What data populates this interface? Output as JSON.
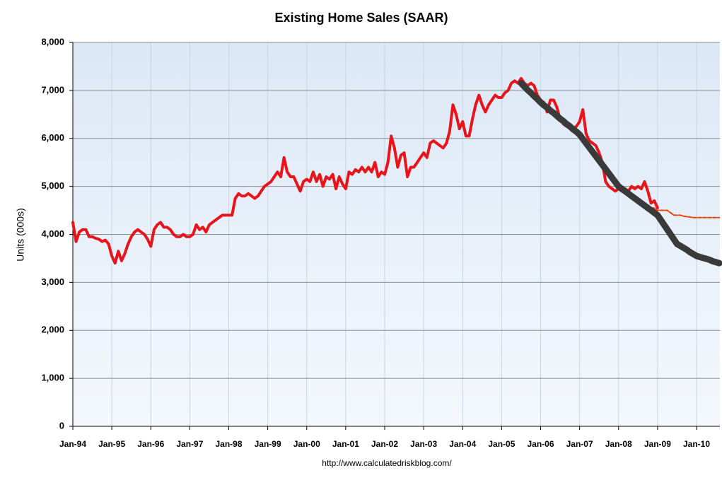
{
  "chart_data": {
    "type": "line",
    "title": "Existing Home Sales (SAAR)",
    "ylabel": "Units (000s)",
    "source": "http://www.calculatedriskblog.com/",
    "categories": [
      "Jan-94",
      null,
      null,
      null,
      null,
      null,
      null,
      null,
      null,
      null,
      null,
      null,
      "Jan-95",
      null,
      null,
      null,
      null,
      null,
      null,
      null,
      null,
      null,
      null,
      null,
      "Jan-96",
      null,
      null,
      null,
      null,
      null,
      null,
      null,
      null,
      null,
      null,
      null,
      "Jan-97",
      null,
      null,
      null,
      null,
      null,
      null,
      null,
      null,
      null,
      null,
      null,
      "Jan-98",
      null,
      null,
      null,
      null,
      null,
      null,
      null,
      null,
      null,
      null,
      null,
      "Jan-99",
      null,
      null,
      null,
      null,
      null,
      null,
      null,
      null,
      null,
      null,
      null,
      "Jan-00",
      null,
      null,
      null,
      null,
      null,
      null,
      null,
      null,
      null,
      null,
      null,
      "Jan-01",
      null,
      null,
      null,
      null,
      null,
      null,
      null,
      null,
      null,
      null,
      null,
      "Jan-02",
      null,
      null,
      null,
      null,
      null,
      null,
      null,
      null,
      null,
      null,
      null,
      "Jan-03",
      null,
      null,
      null,
      null,
      null,
      null,
      null,
      null,
      null,
      null,
      null,
      "Jan-04",
      null,
      null,
      null,
      null,
      null,
      null,
      null,
      null,
      null,
      null,
      null,
      "Jan-05",
      null,
      null,
      null,
      null,
      null,
      null,
      null,
      null,
      null,
      null,
      null,
      "Jan-06",
      null,
      null,
      null,
      null,
      null,
      null,
      null,
      null,
      null,
      null,
      null,
      "Jan-07",
      null,
      null,
      null,
      null,
      null,
      null,
      null,
      null,
      null,
      null,
      null,
      "Jan-08",
      null,
      null,
      null,
      null,
      null,
      null,
      null,
      null,
      null,
      null,
      null,
      "Jan-09",
      null,
      null,
      null,
      null,
      null,
      null,
      null,
      null,
      null,
      null,
      null,
      "Jan-10",
      null,
      null,
      null,
      null,
      null,
      null,
      null
    ],
    "series": [
      {
        "color": "#e8141a",
        "width": 4,
        "values": [
          4250,
          3850,
          4050,
          4100,
          4100,
          3950,
          3950,
          3920,
          3900,
          3850,
          3880,
          3800,
          3550,
          3400,
          3650,
          3450,
          3600,
          3800,
          3950,
          4050,
          4100,
          4050,
          4000,
          3900,
          3750,
          4100,
          4200,
          4250,
          4150,
          4150,
          4100,
          4000,
          3950,
          3950,
          4000,
          3950,
          3950,
          4000,
          4200,
          4100,
          4150,
          4050,
          4200,
          4250,
          4300,
          4350,
          4400,
          4400,
          4400,
          4400,
          4750,
          4850,
          4800,
          4800,
          4850,
          4800,
          4750,
          4800,
          4900,
          5000,
          5050,
          5100,
          5200,
          5300,
          5200,
          5600,
          5300,
          5200,
          5200,
          5050,
          4900,
          5100,
          5150,
          5100,
          5300,
          5100,
          5250,
          5000,
          5200,
          5150,
          5250,
          4950,
          5200,
          5050,
          4950,
          5300,
          5250,
          5350,
          5300,
          5400,
          5300,
          5400,
          5300,
          5500,
          5200,
          5300,
          5250,
          5500,
          6050,
          5800,
          5400,
          5650,
          5700,
          5200,
          5400,
          5400,
          5500,
          5600,
          5700,
          5600,
          5900,
          5950,
          5900,
          5850,
          5800,
          5900,
          6150,
          6700,
          6500,
          6200,
          6350,
          6050,
          6050,
          6400,
          6700,
          6900,
          6700,
          6550,
          6700,
          6800,
          6900,
          6850,
          6850,
          6950,
          7000,
          7150,
          7200,
          7150,
          7250,
          7150,
          7100,
          7150,
          7100,
          6900,
          6800,
          6750,
          6550,
          6800,
          6800,
          6650,
          6400,
          6300,
          6250,
          6300,
          6200,
          6250,
          6350,
          6600,
          6100,
          5950,
          5900,
          5850,
          5700,
          5500,
          5100,
          5000,
          4950,
          4900,
          4950,
          4900,
          4950,
          4900,
          5000,
          4950,
          5000,
          4950,
          5100,
          4900,
          4650,
          4700,
          4550,
          null,
          null,
          null,
          null,
          null,
          null,
          null,
          null,
          null,
          null,
          null,
          null,
          null,
          null,
          null,
          null,
          null,
          null,
          null
        ]
      },
      {
        "color": "#e8400a",
        "width": 2,
        "dash": true,
        "values": [
          null,
          null,
          null,
          null,
          null,
          null,
          null,
          null,
          null,
          null,
          null,
          null,
          null,
          null,
          null,
          null,
          null,
          null,
          null,
          null,
          null,
          null,
          null,
          null,
          null,
          null,
          null,
          null,
          null,
          null,
          null,
          null,
          null,
          null,
          null,
          null,
          null,
          null,
          null,
          null,
          null,
          null,
          null,
          null,
          null,
          null,
          null,
          null,
          null,
          null,
          null,
          null,
          null,
          null,
          null,
          null,
          null,
          null,
          null,
          null,
          null,
          null,
          null,
          null,
          null,
          null,
          null,
          null,
          null,
          null,
          null,
          null,
          null,
          null,
          null,
          null,
          null,
          null,
          null,
          null,
          null,
          null,
          null,
          null,
          null,
          null,
          null,
          null,
          null,
          null,
          null,
          null,
          null,
          null,
          null,
          null,
          null,
          null,
          null,
          null,
          null,
          null,
          null,
          null,
          null,
          null,
          null,
          null,
          null,
          null,
          null,
          null,
          null,
          null,
          null,
          null,
          null,
          null,
          null,
          null,
          null,
          null,
          null,
          null,
          null,
          null,
          null,
          null,
          null,
          null,
          null,
          null,
          null,
          null,
          null,
          null,
          null,
          null,
          null,
          null,
          null,
          null,
          null,
          null,
          null,
          null,
          null,
          null,
          null,
          null,
          null,
          null,
          null,
          null,
          null,
          null,
          null,
          null,
          null,
          null,
          null,
          null,
          null,
          null,
          null,
          null,
          null,
          null,
          null,
          null,
          null,
          null,
          null,
          null,
          null,
          null,
          null,
          null,
          4550,
          4550,
          4500,
          4500,
          4500,
          4500,
          4450,
          4400,
          4400,
          4400,
          4380,
          4370,
          4360,
          4350,
          4350,
          4350,
          4350,
          4350,
          4350,
          4350,
          4350,
          4350
        ]
      },
      {
        "color": "#3a3a3a",
        "width": 9,
        "values": [
          null,
          null,
          null,
          null,
          null,
          null,
          null,
          null,
          null,
          null,
          null,
          null,
          null,
          null,
          null,
          null,
          null,
          null,
          null,
          null,
          null,
          null,
          null,
          null,
          null,
          null,
          null,
          null,
          null,
          null,
          null,
          null,
          null,
          null,
          null,
          null,
          null,
          null,
          null,
          null,
          null,
          null,
          null,
          null,
          null,
          null,
          null,
          null,
          null,
          null,
          null,
          null,
          null,
          null,
          null,
          null,
          null,
          null,
          null,
          null,
          null,
          null,
          null,
          null,
          null,
          null,
          null,
          null,
          null,
          null,
          null,
          null,
          null,
          null,
          null,
          null,
          null,
          null,
          null,
          null,
          null,
          null,
          null,
          null,
          null,
          null,
          null,
          null,
          null,
          null,
          null,
          null,
          null,
          null,
          null,
          null,
          null,
          null,
          null,
          null,
          null,
          null,
          null,
          null,
          null,
          null,
          null,
          null,
          null,
          null,
          null,
          null,
          null,
          null,
          null,
          null,
          null,
          null,
          null,
          null,
          null,
          null,
          null,
          null,
          null,
          null,
          null,
          null,
          null,
          null,
          null,
          null,
          null,
          null,
          null,
          null,
          null,
          null,
          7150,
          7080,
          7010,
          6950,
          6880,
          6820,
          6750,
          6690,
          6640,
          6580,
          6530,
          6470,
          6410,
          6360,
          6300,
          6250,
          6190,
          6140,
          6080,
          5990,
          5900,
          5810,
          5720,
          5630,
          5540,
          5450,
          5360,
          5270,
          5180,
          5090,
          5000,
          4950,
          4900,
          4850,
          4800,
          4750,
          4700,
          4650,
          4600,
          4550,
          4500,
          4450,
          4400,
          4300,
          4200,
          4100,
          4000,
          3900,
          3800,
          3760,
          3720,
          3680,
          3630,
          3590,
          3550,
          3530,
          3510,
          3490,
          3470,
          3440,
          3420,
          3400
        ]
      }
    ],
    "ylim": [
      0,
      8000
    ],
    "yticks": [
      0,
      {
        "value": 1000,
        "label": "1,000"
      },
      {
        "value": 2000,
        "label": "2,000"
      },
      {
        "value": 3000,
        "label": "3,000"
      },
      {
        "value": 4000,
        "label": "4,000"
      },
      {
        "value": 5000,
        "label": "5,000"
      },
      {
        "value": 6000,
        "label": "6,000"
      },
      {
        "value": 7000,
        "label": "7,000"
      },
      {
        "value": 8000,
        "label": "8,000"
      }
    ],
    "grid": true
  }
}
